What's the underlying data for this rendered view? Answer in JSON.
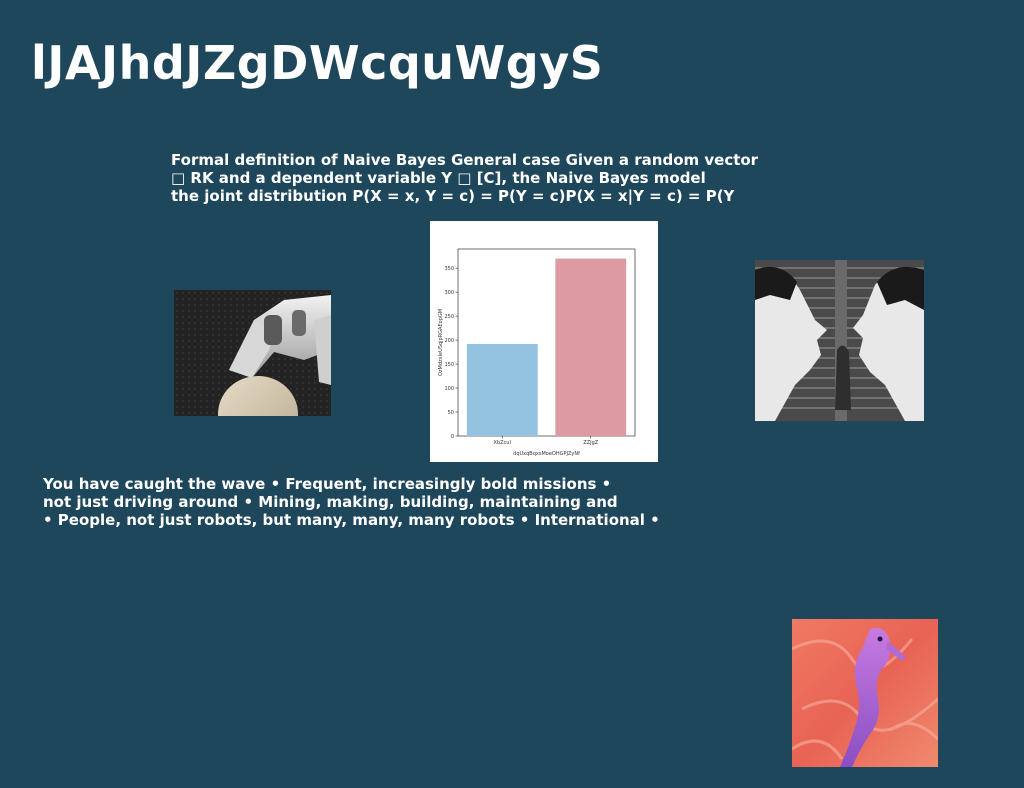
{
  "slide": {
    "title": "lJAJhdJZgDWcquWgyS",
    "paragraph1": [
      "Formal definition of Naive Bayes General case Given a random vector",
      "□ RK and a dependent variable Y □ [C], the Naive Bayes model",
      "the joint distribution P(X = x, Y = c) = P(Y = c)P(X = x|Y = c) = P(Y"
    ],
    "paragraph2": [
      "You have caught the wave • Frequent, increasingly bold missions •",
      "not just driving around • Mining, making, building, maintaining and",
      "• People, not just robots, but many, many, many robots • International •"
    ]
  },
  "images": {
    "robot": "robot-hand-photo",
    "comic": "comic-mural-photo",
    "seahorse": "seahorse-photo"
  },
  "chart_data": {
    "type": "bar",
    "categories": [
      "XbZcuI",
      "ZZJgZ"
    ],
    "values": [
      192,
      370
    ],
    "colors": [
      "#93c3de",
      "#de9aa3"
    ],
    "xlabel": "dqUxqBqxsMoeOHGPJZyNf",
    "ylabel": "OzMdzxIeUSqjpRGAEopGM",
    "ylim": [
      0,
      390
    ],
    "yticks": [
      0,
      50,
      100,
      150,
      200,
      250,
      300,
      350
    ],
    "grid": false
  }
}
